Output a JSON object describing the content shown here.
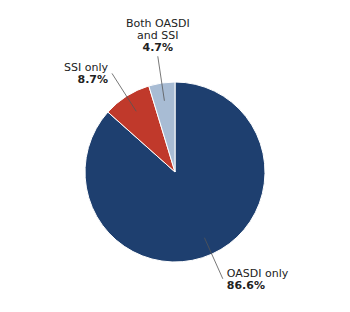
{
  "chart_data": {
    "type": "pie",
    "categories": [
      "OASDI only",
      "SSI only",
      "Both OASDI\nand SSI"
    ],
    "values": [
      86.6,
      8.7,
      4.7
    ],
    "value_labels": [
      "86.6%",
      "8.7%",
      "4.7%"
    ],
    "colors": [
      "#1e3f6f",
      "#c0392b",
      "#a8bcd4"
    ],
    "data_labels": true
  }
}
